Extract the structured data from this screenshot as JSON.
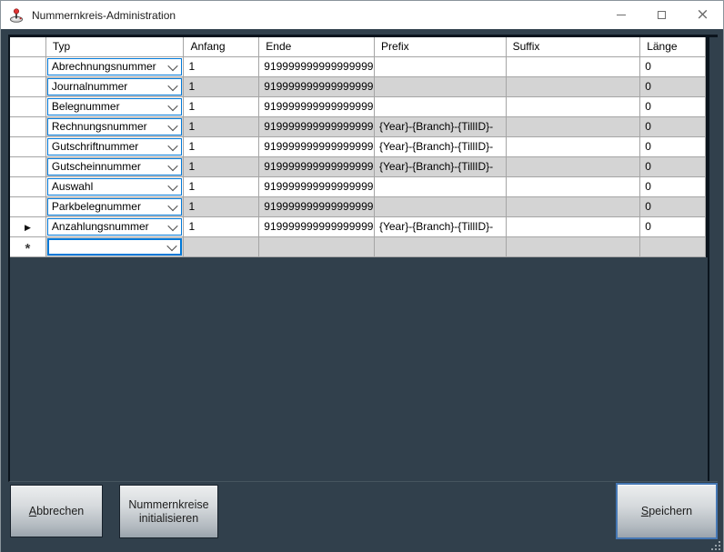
{
  "titlebar": {
    "title": "Nummernkreis-Administration"
  },
  "icons": {
    "app": "joystick-icon",
    "minimize": "minimize-icon",
    "maximize": "maximize-icon",
    "close": "close-icon",
    "close_glyph": "×",
    "combobox_arrow": "chevron-down-icon",
    "current_row_marker": "▶",
    "new_row_marker": "*",
    "resize_grip": "resize-grip-icon"
  },
  "colors": {
    "accent_blue": "#0078d7",
    "window_bg": "#31404c",
    "titlebar_bg": "#ffffff",
    "alt_row": "#d4d4d4",
    "grid_line": "#a5a5a5",
    "speichern_border": "#4577b3"
  },
  "grid": {
    "columns": [
      "",
      "Typ",
      "Anfang",
      "Ende",
      "Prefix",
      "Suffix",
      "Länge"
    ],
    "rows": [
      {
        "indicator": "",
        "typ": "Abrechnungsnummer",
        "anfang": "1",
        "ende": "919999999999999999",
        "prefix": "",
        "suffix": "",
        "laenge": "0",
        "new_row": false
      },
      {
        "indicator": "",
        "typ": "Journalnummer",
        "anfang": "1",
        "ende": "919999999999999999",
        "prefix": "",
        "suffix": "",
        "laenge": "0",
        "new_row": false
      },
      {
        "indicator": "",
        "typ": "Belegnummer",
        "anfang": "1",
        "ende": "919999999999999999",
        "prefix": "",
        "suffix": "",
        "laenge": "0",
        "new_row": false
      },
      {
        "indicator": "",
        "typ": "Rechnungsnummer",
        "anfang": "1",
        "ende": "919999999999999999",
        "prefix": "{Year}-{Branch}-{TillID}-",
        "suffix": "",
        "laenge": "0",
        "new_row": false
      },
      {
        "indicator": "",
        "typ": "Gutschriftnummer",
        "anfang": "1",
        "ende": "919999999999999999",
        "prefix": "{Year}-{Branch}-{TillID}-",
        "suffix": "",
        "laenge": "0",
        "new_row": false
      },
      {
        "indicator": "",
        "typ": "Gutscheinnummer",
        "anfang": "1",
        "ende": "919999999999999999",
        "prefix": "{Year}-{Branch}-{TillID}-",
        "suffix": "",
        "laenge": "0",
        "new_row": false
      },
      {
        "indicator": "",
        "typ": "Auswahl",
        "anfang": "1",
        "ende": "919999999999999999",
        "prefix": "",
        "suffix": "",
        "laenge": "0",
        "new_row": false
      },
      {
        "indicator": "",
        "typ": "Parkbelegnummer",
        "anfang": "1",
        "ende": "919999999999999999",
        "prefix": "",
        "suffix": "",
        "laenge": "0",
        "new_row": false
      },
      {
        "indicator": "▶",
        "typ": "Anzahlungsnummer",
        "anfang": "1",
        "ende": "919999999999999999",
        "prefix": "{Year}-{Branch}-{TillID}-",
        "suffix": "",
        "laenge": "0",
        "new_row": false
      },
      {
        "indicator": "*",
        "typ": "",
        "anfang": "",
        "ende": "",
        "prefix": "",
        "suffix": "",
        "laenge": "",
        "new_row": true
      }
    ]
  },
  "buttons": {
    "abbrechen": {
      "label": "Abbrechen",
      "mnemonic": "A",
      "rest": "bbrechen"
    },
    "initialisieren": {
      "label": "Nummernkreise initialisieren",
      "line1": "Nummernkreise",
      "line2": "initialisieren"
    },
    "speichern": {
      "label": "Speichern",
      "mnemonic": "S",
      "rest": "peichern"
    }
  }
}
